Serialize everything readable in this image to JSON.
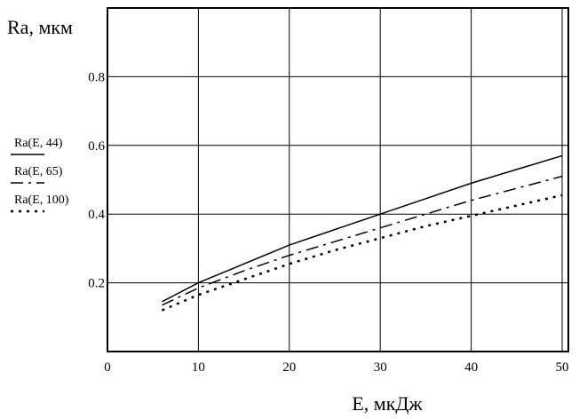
{
  "chart_data": {
    "type": "line",
    "xlabel": "E, мкДж",
    "ylabel": "Ra, мкм",
    "xlim": [
      0,
      50
    ],
    "ylim": [
      0,
      1
    ],
    "xticks": [
      "0",
      "10",
      "20",
      "30",
      "40",
      "50"
    ],
    "yticks": [
      "0.2",
      "0.4",
      "0.6",
      "0.8"
    ],
    "grid": true,
    "legend_position": "left",
    "x": [
      6,
      10,
      15,
      20,
      25,
      30,
      35,
      40,
      45,
      50
    ],
    "series": [
      {
        "name": "Ra(E, 44)",
        "style": "solid",
        "values": [
          0.145,
          0.2,
          0.255,
          0.31,
          0.355,
          0.4,
          0.445,
          0.49,
          0.53,
          0.57
        ]
      },
      {
        "name": "Ra(E, 65)",
        "style": "dash-dot",
        "values": [
          0.135,
          0.185,
          0.235,
          0.28,
          0.32,
          0.36,
          0.4,
          0.44,
          0.475,
          0.51
        ]
      },
      {
        "name": "Ra(E, 100)",
        "style": "dotted",
        "values": [
          0.12,
          0.165,
          0.21,
          0.255,
          0.295,
          0.33,
          0.365,
          0.395,
          0.425,
          0.455
        ]
      }
    ],
    "colors": {
      "line": "#000000",
      "background": "#ffffff"
    }
  }
}
